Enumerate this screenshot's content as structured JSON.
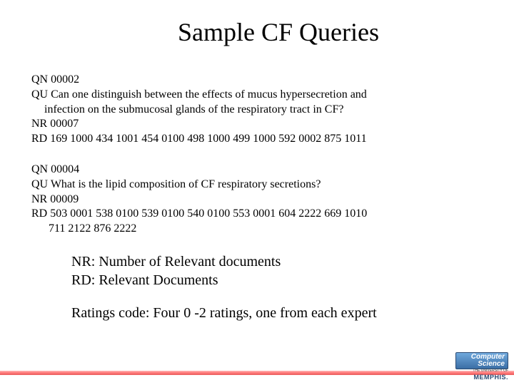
{
  "title": "Sample CF Queries",
  "query1": {
    "qn": "QN 00002",
    "qu1": "QU Can one distinguish between the effects of mucus hypersecretion and",
    "qu2": "infection on the submucosal glands of the respiratory tract in CF?",
    "nr": "NR 00007",
    "rd": "RD  169 1000  434 1001  454 0100  498 1000  499 1000  592 0002  875 1011"
  },
  "query2": {
    "qn": "QN 00004",
    "qu1": "QU What is the lipid composition of CF respiratory secretions?",
    "nr": "NR 00009",
    "rd1": "RD  503 0001  538 0100  539 0100  540 0100  553 0001  604 2222  669 1010",
    "rd2": "711 2122  876 2222"
  },
  "legend": {
    "nr": "NR: Number of Relevant documents",
    "rd": "RD: Relevant Documents"
  },
  "ratings": "Ratings code:  Four 0 -2 ratings, one from each expert",
  "logo": {
    "cs": "Computer Science",
    "univ": "THE UNIVERSITY OF",
    "mem": "MEMPHIS."
  },
  "colors": {
    "background": "#ffffff",
    "text": "#000000",
    "band_light": "#ff9a9a",
    "band_dark": "#dd1a1a",
    "logo_bg": "#3b6ea5"
  },
  "fonts": {
    "title_size": 36,
    "body_size": 16,
    "legend_size": 20
  }
}
